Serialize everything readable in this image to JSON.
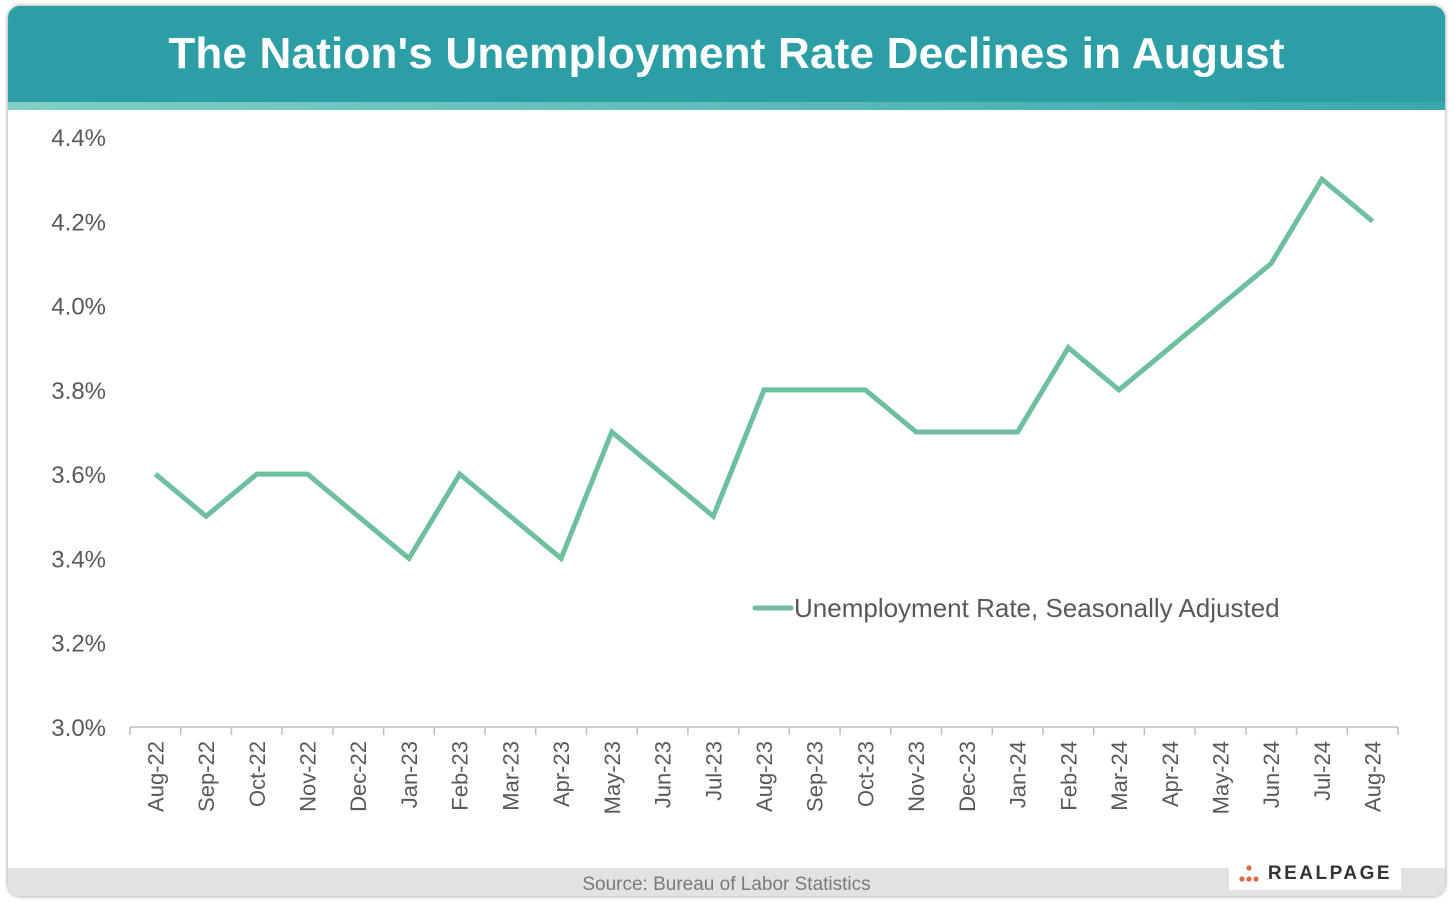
{
  "title": "The Nation's Unemployment Rate Declines in August",
  "source": "Source: Bureau of Labor Statistics",
  "logo": {
    "text": "REALPAGE",
    "icon": "dots-logo-icon"
  },
  "colors": {
    "header": "#2b9ea6",
    "line": "#6dbf9e",
    "axis": "#bfbfbf",
    "text": "#595959",
    "logo_dot": "#e06a3f"
  },
  "chart_data": {
    "type": "line",
    "title": "The Nation's Unemployment Rate Declines in August",
    "xlabel": "",
    "ylabel": "",
    "ylim": [
      3.0,
      4.4
    ],
    "y_ticks": [
      3.0,
      3.2,
      3.4,
      3.6,
      3.8,
      4.0,
      4.2,
      4.4
    ],
    "y_tick_labels": [
      "3.0%",
      "3.2%",
      "3.4%",
      "3.6%",
      "3.8%",
      "4.0%",
      "4.2%",
      "4.4%"
    ],
    "categories": [
      "Aug-22",
      "Sep-22",
      "Oct-22",
      "Nov-22",
      "Dec-22",
      "Jan-23",
      "Feb-23",
      "Mar-23",
      "Apr-23",
      "May-23",
      "Jun-23",
      "Jul-23",
      "Aug-23",
      "Sep-23",
      "Oct-23",
      "Nov-23",
      "Dec-23",
      "Jan-24",
      "Feb-24",
      "Mar-24",
      "Apr-24",
      "May-24",
      "Jun-24",
      "Jul-24",
      "Aug-24"
    ],
    "series": [
      {
        "name": "Unemployment Rate, Seasonally Adjusted",
        "values": [
          3.6,
          3.5,
          3.6,
          3.6,
          3.5,
          3.4,
          3.6,
          3.5,
          3.4,
          3.7,
          3.6,
          3.5,
          3.8,
          3.8,
          3.8,
          3.7,
          3.7,
          3.7,
          3.9,
          3.8,
          3.9,
          4.0,
          4.1,
          4.3,
          4.2
        ]
      }
    ],
    "grid": false,
    "legend": "center-right"
  }
}
